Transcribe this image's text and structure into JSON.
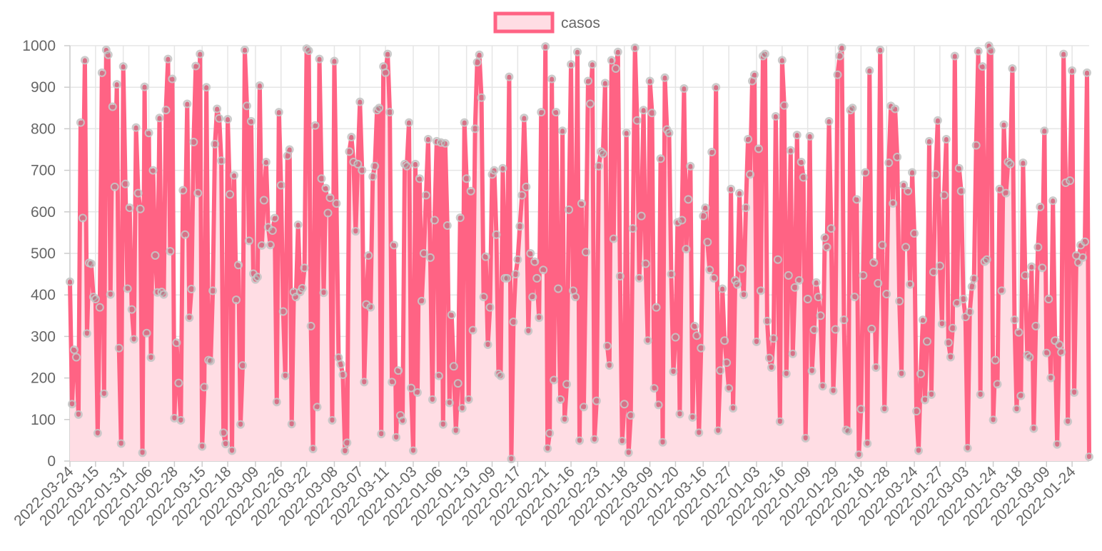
{
  "chart_data": {
    "type": "area",
    "series": [
      {
        "name": "casos",
        "line_color": "#ff6384",
        "fill_color": "#ffdde4",
        "values": [
          432,
          137,
          268,
          250,
          112,
          815,
          585,
          965,
          307,
          477,
          475,
          395,
          390,
          67,
          370,
          935,
          162,
          990,
          978,
          401,
          853,
          660,
          907,
          272,
          42,
          950,
          667,
          415,
          610,
          365,
          293,
          803,
          645,
          607,
          20,
          901,
          308,
          790,
          249,
          700,
          495,
          406,
          826,
          407,
          401,
          845,
          968,
          505,
          920,
          103,
          285,
          188,
          98,
          652,
          545,
          860,
          345,
          414,
          768,
          951,
          645,
          980,
          35,
          178,
          900,
          243,
          241,
          410,
          763,
          848,
          825,
          723,
          68,
          41,
          823,
          642,
          25,
          688,
          388,
          472,
          88,
          230,
          990,
          855,
          530,
          818,
          451,
          437,
          443,
          904,
          519,
          628,
          720,
          563,
          520,
          555,
          585,
          142,
          840,
          664,
          360,
          205,
          735,
          750,
          89,
          407,
          395,
          569,
          407,
          416,
          465,
          993,
          988,
          325,
          29,
          808,
          130,
          968,
          680,
          405,
          657,
          597,
          634,
          98,
          963,
          620,
          249,
          233,
          208,
          24,
          44,
          745,
          780,
          720,
          553,
          715,
          865,
          700,
          190,
          377,
          495,
          370,
          685,
          710,
          845,
          850,
          65,
          950,
          935,
          980,
          840,
          190,
          520,
          57,
          218,
          110,
          97,
          715,
          710,
          815,
          176,
          25,
          715,
          165,
          680,
          385,
          500,
          640,
          775,
          490,
          148,
          580,
          770,
          205,
          767,
          88,
          765,
          567,
          140,
          352,
          228,
          73,
          187,
          586,
          127,
          815,
          680,
          148,
          650,
          315,
          800,
          960,
          978,
          875,
          395,
          492,
          280,
          370,
          690,
          700,
          545,
          210,
          205,
          705,
          440,
          440,
          925,
          5,
          335,
          450,
          485,
          565,
          640,
          826,
          660,
          313,
          500,
          395,
          480,
          440,
          345,
          840,
          460,
          998,
          30,
          67,
          920,
          195,
          840,
          415,
          148,
          795,
          100,
          185,
          605,
          955,
          410,
          395,
          985,
          49,
          620,
          130,
          503,
          915,
          860,
          955,
          52,
          145,
          710,
          745,
          740,
          910,
          277,
          230,
          965,
          535,
          945,
          985,
          445,
          48,
          137,
          790,
          20,
          110,
          560,
          995,
          820,
          440,
          590,
          845,
          475,
          290,
          915,
          838,
          175,
          370,
          135,
          728,
          45,
          923,
          798,
          790,
          450,
          215,
          298,
          575,
          113,
          580,
          897,
          510,
          630,
          710,
          105,
          325,
          302,
          68,
          272,
          590,
          610,
          527,
          460,
          744,
          440,
          900,
          73,
          218,
          415,
          290,
          237,
          175,
          655,
          127,
          435,
          425,
          645,
          463,
          400,
          610,
          775,
          690,
          915,
          930,
          287,
          752,
          410,
          975,
          980,
          337,
          248,
          225,
          295,
          830,
          485,
          95,
          965,
          856,
          210,
          447,
          748,
          258,
          418,
          785,
          435,
          720,
          683,
          55,
          390,
          782,
          217,
          316,
          430,
          395,
          350,
          180,
          538,
          515,
          818,
          560,
          169,
          317,
          930,
          975,
          995,
          340,
          75,
          72,
          845,
          850,
          395,
          630,
          15,
          125,
          447,
          695,
          42,
          940,
          318,
          478,
          225,
          428,
          990,
          520,
          125,
          402,
          718,
          855,
          620,
          848,
          732,
          385,
          210,
          665,
          515,
          650,
          425,
          695,
          548,
          120,
          25,
          210,
          340,
          147,
          288,
          770,
          160,
          455,
          690,
          820,
          470,
          330,
          640,
          775,
          285,
          250,
          320,
          975,
          380,
          705,
          650,
          390,
          347,
          31,
          359,
          420,
          439,
          760,
          987,
          160,
          950,
          480,
          485,
          1000,
          988,
          99,
          243,
          185,
          655,
          410,
          810,
          645,
          720,
          715,
          945,
          340,
          125,
          310,
          157,
          718,
          447,
          255,
          250,
          468,
          78,
          325,
          515,
          612,
          465,
          795,
          260,
          390,
          200,
          627,
          290,
          40,
          280,
          262,
          980,
          670,
          95,
          675,
          940,
          165,
          495,
          478,
          520,
          490,
          528,
          935,
          10
        ]
      }
    ],
    "ylim": [
      0,
      1000
    ],
    "ytick_labels": [
      "0",
      "100",
      "200",
      "300",
      "400",
      "500",
      "600",
      "700",
      "800",
      "900",
      "1000"
    ],
    "x_tick_labels": [
      "2022-03-24",
      "2022-03-15",
      "2022-01-31",
      "2022-01-06",
      "2022-02-28",
      "2022-03-15",
      "2022-02-18",
      "2022-03-09",
      "2022-02-26",
      "2022-03-22",
      "2022-03-08",
      "2022-03-07",
      "2022-03-11",
      "2022-01-03",
      "2022-01-06",
      "2022-01-13",
      "2022-01-09",
      "2022-02-17",
      "2022-02-21",
      "2022-01-16",
      "2022-02-23",
      "2022-01-18",
      "2022-03-09",
      "2022-01-20",
      "2022-03-16",
      "2022-01-27",
      "2022-01-03",
      "2022-02-16",
      "2022-01-09",
      "2022-01-29",
      "2022-02-18",
      "2022-01-28",
      "2022-03-24",
      "2022-01-27",
      "2022-03-03",
      "2022-01-24",
      "2022-03-18",
      "2022-03-09",
      "2022-01-24"
    ],
    "grid": true,
    "legend_position": "top",
    "legend": [
      {
        "label": "casos"
      }
    ]
  }
}
